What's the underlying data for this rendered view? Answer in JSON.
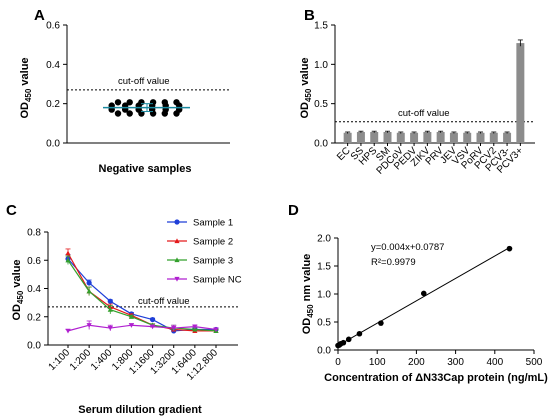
{
  "chart_data": [
    {
      "panel": "A",
      "type": "scatter",
      "ylabel": "OD450 value",
      "xlabel": "Negative samples",
      "ylim": [
        0,
        0.6
      ],
      "yticks": [
        "0.0",
        "0.2",
        "0.4",
        "0.6"
      ],
      "cutoff": {
        "value": 0.27,
        "label": "cut-off value"
      },
      "mean": 0.18,
      "sd": 0.02,
      "points": [
        {
          "x": 0.2,
          "y": 0.207
        },
        {
          "x": 0.33,
          "y": 0.207
        },
        {
          "x": 0.46,
          "y": 0.207
        },
        {
          "x": 0.59,
          "y": 0.207
        },
        {
          "x": 0.72,
          "y": 0.207
        },
        {
          "x": 0.85,
          "y": 0.207
        },
        {
          "x": 0.13,
          "y": 0.19
        },
        {
          "x": 0.28,
          "y": 0.19
        },
        {
          "x": 0.43,
          "y": 0.19
        },
        {
          "x": 0.58,
          "y": 0.19
        },
        {
          "x": 0.73,
          "y": 0.19
        },
        {
          "x": 0.88,
          "y": 0.19
        },
        {
          "x": 0.13,
          "y": 0.17
        },
        {
          "x": 0.28,
          "y": 0.17
        },
        {
          "x": 0.43,
          "y": 0.17
        },
        {
          "x": 0.58,
          "y": 0.17
        },
        {
          "x": 0.73,
          "y": 0.17
        },
        {
          "x": 0.88,
          "y": 0.17
        },
        {
          "x": 0.2,
          "y": 0.15
        },
        {
          "x": 0.33,
          "y": 0.15
        },
        {
          "x": 0.46,
          "y": 0.15
        },
        {
          "x": 0.59,
          "y": 0.15
        },
        {
          "x": 0.72,
          "y": 0.15
        },
        {
          "x": 0.85,
          "y": 0.15
        }
      ]
    },
    {
      "panel": "B",
      "type": "bar",
      "ylabel": "OD450 value",
      "ylim": [
        0,
        1.5
      ],
      "yticks": [
        "0.0",
        "0.5",
        "1.0",
        "1.5"
      ],
      "cutoff": {
        "value": 0.27,
        "label": "cut-off value"
      },
      "categories": [
        "EC",
        "SS",
        "HPS",
        "SM",
        "PDCoV",
        "PEDV",
        "ZIKV",
        "PRV",
        "JEV",
        "VSV",
        "PoRV",
        "PCV2",
        "PCV3-",
        "PCV3+"
      ],
      "values": [
        0.13,
        0.14,
        0.14,
        0.14,
        0.13,
        0.13,
        0.14,
        0.14,
        0.13,
        0.13,
        0.13,
        0.13,
        0.13,
        1.27
      ],
      "errors": [
        0.01,
        0.01,
        0.01,
        0.01,
        0.01,
        0.01,
        0.01,
        0.01,
        0.01,
        0.01,
        0.01,
        0.01,
        0.01,
        0.04
      ]
    },
    {
      "panel": "C",
      "type": "line",
      "ylabel": "OD450 value",
      "xlabel": "Serum dilution gradient",
      "ylim": [
        0,
        0.8
      ],
      "yticks": [
        "0.0",
        "0.2",
        "0.4",
        "0.6",
        "0.8"
      ],
      "categories": [
        "1:100",
        "1:200",
        "1:400",
        "1:800",
        "1:1600",
        "1:3200",
        "1:6400",
        "1:12,800"
      ],
      "cutoff": {
        "value": 0.27,
        "label": "cut-off value"
      },
      "series": [
        {
          "name": "Sample 1",
          "color": "#1f3fd8",
          "marker": "circle",
          "values": [
            0.61,
            0.44,
            0.31,
            0.22,
            0.18,
            0.1,
            0.11,
            0.11
          ],
          "errors": [
            0.03,
            0.02,
            0.01,
            0.01,
            0.01,
            0.01,
            0.01,
            0.01
          ]
        },
        {
          "name": "Sample 2",
          "color": "#e41a1c",
          "marker": "triangle",
          "values": [
            0.65,
            0.38,
            0.27,
            0.21,
            0.14,
            0.11,
            0.1,
            0.1
          ],
          "errors": [
            0.03,
            0.03,
            0.02,
            0.01,
            0.01,
            0.01,
            0.01,
            0.01
          ]
        },
        {
          "name": "Sample 3",
          "color": "#33a02c",
          "marker": "triangle",
          "values": [
            0.6,
            0.38,
            0.25,
            0.2,
            0.14,
            0.12,
            0.11,
            0.1
          ],
          "errors": [
            0.03,
            0.03,
            0.03,
            0.01,
            0.01,
            0.02,
            0.01,
            0.01
          ]
        },
        {
          "name": "Sample NC",
          "color": "#b020d0",
          "marker": "triangle-down",
          "values": [
            0.1,
            0.14,
            0.12,
            0.14,
            0.13,
            0.12,
            0.13,
            0.11
          ],
          "errors": [
            0.01,
            0.03,
            0.02,
            0.01,
            0.01,
            0.02,
            0.01,
            0.01
          ]
        }
      ]
    },
    {
      "panel": "D",
      "type": "scatter",
      "ylabel": "OD450 nm value",
      "xlabel": "Concentration of ΔN33Cap protein (ng/mL)",
      "xlim": [
        0,
        500
      ],
      "ylim": [
        0,
        2.0
      ],
      "xticks": [
        "0",
        "100",
        "200",
        "300",
        "400",
        "500"
      ],
      "yticks": [
        "0.0",
        "0.5",
        "1.0",
        "1.5",
        "2.0"
      ],
      "equation": "y=0.004x+0.0787",
      "r2": "R²=0.9979",
      "points": [
        {
          "x": 0,
          "y": 0.08
        },
        {
          "x": 3.4,
          "y": 0.09
        },
        {
          "x": 6.8,
          "y": 0.11
        },
        {
          "x": 13.7,
          "y": 0.13
        },
        {
          "x": 27.4,
          "y": 0.19
        },
        {
          "x": 54.7,
          "y": 0.29
        },
        {
          "x": 109.4,
          "y": 0.48
        },
        {
          "x": 218.8,
          "y": 1.01
        },
        {
          "x": 437.5,
          "y": 1.81
        }
      ],
      "fit": {
        "slope": 0.004,
        "intercept": 0.0787
      }
    }
  ]
}
